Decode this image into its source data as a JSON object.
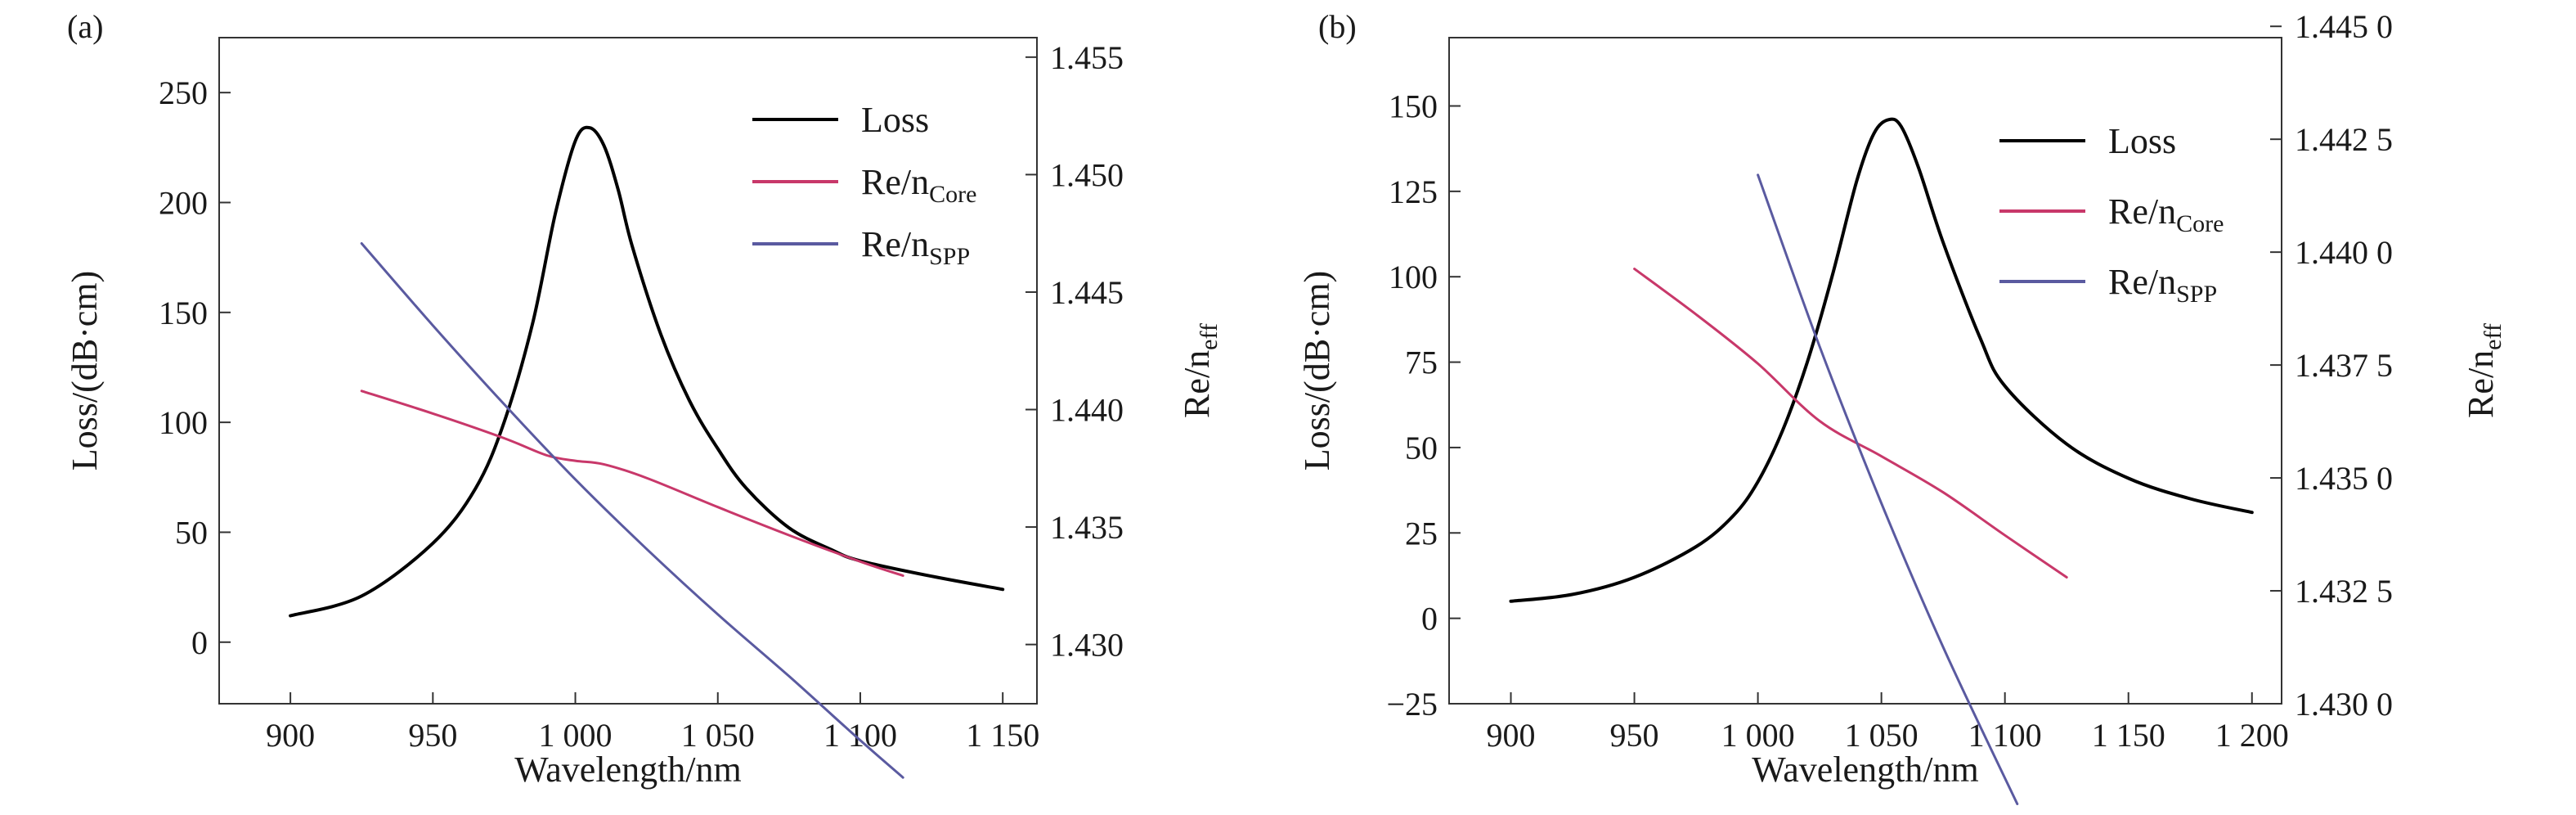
{
  "chart_data": [
    {
      "type": "line",
      "panel_label": "(a)",
      "xlabel": "Wavelength/nm",
      "ylabel": "Loss/(dB·cm)",
      "y2label": {
        "main": "Re/n",
        "sub": "eff"
      },
      "xlim": [
        875,
        1162
      ],
      "ylim": [
        -28,
        275
      ],
      "y2lim": [
        1.42748,
        1.45583
      ],
      "x_ticks": [
        {
          "value": 900,
          "label": "900"
        },
        {
          "value": 950,
          "label": "950"
        },
        {
          "value": 1000,
          "label": "1 000"
        },
        {
          "value": 1050,
          "label": "1 050"
        },
        {
          "value": 1100,
          "label": "1 100"
        },
        {
          "value": 1150,
          "label": "1 150"
        }
      ],
      "y_ticks": [
        {
          "value": 0,
          "label": "0"
        },
        {
          "value": 50,
          "label": "50"
        },
        {
          "value": 100,
          "label": "100"
        },
        {
          "value": 150,
          "label": "150"
        },
        {
          "value": 200,
          "label": "200"
        },
        {
          "value": 250,
          "label": "250"
        }
      ],
      "y2_ticks": [
        {
          "value": 1.43,
          "label": "1.430"
        },
        {
          "value": 1.435,
          "label": "1.435"
        },
        {
          "value": 1.44,
          "label": "1.440"
        },
        {
          "value": 1.445,
          "label": "1.445"
        },
        {
          "value": 1.45,
          "label": "1.450"
        },
        {
          "value": 1.455,
          "label": "1.455"
        }
      ],
      "legend_position": "top-right",
      "series": [
        {
          "name": "Loss",
          "label_main": "Loss",
          "label_sub": "",
          "axis": "left",
          "color": "#000000",
          "x": [
            900,
            925,
            950,
            965,
            975,
            985,
            993,
            1000,
            1005,
            1010,
            1015,
            1020,
            1030,
            1040,
            1050,
            1060,
            1075,
            1090,
            1100,
            1125,
            1150
          ],
          "y": [
            12,
            21,
            45,
            70,
            100,
            145,
            195,
            228,
            234,
            226,
            206,
            180,
            140,
            110,
            88,
            70,
            52,
            42,
            37,
            30,
            24
          ]
        },
        {
          "name": "Re/nCore",
          "label_main": "Re/n",
          "label_sub": "Core",
          "axis": "right",
          "color": "#c8386a",
          "x": [
            925,
            950,
            975,
            990,
            1000,
            1010,
            1025,
            1050,
            1075,
            1100,
            1115
          ],
          "y": [
            1.44079,
            1.43983,
            1.43878,
            1.43805,
            1.43782,
            1.43767,
            1.43709,
            1.43585,
            1.43465,
            1.43353,
            1.43293
          ]
        },
        {
          "name": "Re/nSPP",
          "label_main": "Re/n",
          "label_sub": "SPP",
          "axis": "right",
          "color": "#5a5aa0",
          "x": [
            925,
            950,
            975,
            1000,
            1025,
            1050,
            1075,
            1100,
            1115
          ],
          "y": [
            1.44707,
            1.44358,
            1.44023,
            1.43703,
            1.43407,
            1.43128,
            1.42865,
            1.42592,
            1.42434
          ]
        }
      ]
    },
    {
      "type": "line",
      "panel_label": "(b)",
      "xlabel": "Wavelength/nm",
      "ylabel": "Loss/(dB·cm)",
      "y2label": {
        "main": "Re/n",
        "sub": "eff"
      },
      "xlim": [
        875,
        1212
      ],
      "ylim": [
        -25,
        170
      ],
      "y2lim": [
        1.43,
        1.44475
      ],
      "x_ticks": [
        {
          "value": 900,
          "label": "900"
        },
        {
          "value": 950,
          "label": "950"
        },
        {
          "value": 1000,
          "label": "1 000"
        },
        {
          "value": 1050,
          "label": "1 050"
        },
        {
          "value": 1100,
          "label": "1 100"
        },
        {
          "value": 1150,
          "label": "1 150"
        },
        {
          "value": 1200,
          "label": "1 200"
        }
      ],
      "y_ticks": [
        {
          "value": -25,
          "label": "−25"
        },
        {
          "value": 0,
          "label": "0"
        },
        {
          "value": 25,
          "label": "25"
        },
        {
          "value": 50,
          "label": "50"
        },
        {
          "value": 75,
          "label": "75"
        },
        {
          "value": 100,
          "label": "100"
        },
        {
          "value": 125,
          "label": "125"
        },
        {
          "value": 150,
          "label": "150"
        }
      ],
      "y2_ticks": [
        {
          "value": 1.43,
          "label": "1.430 0"
        },
        {
          "value": 1.4325,
          "label": "1.432 5"
        },
        {
          "value": 1.435,
          "label": "1.435 0"
        },
        {
          "value": 1.4375,
          "label": "1.437 5"
        },
        {
          "value": 1.44,
          "label": "1.440 0"
        },
        {
          "value": 1.4425,
          "label": "1.442 5"
        },
        {
          "value": 1.445,
          "label": "1.445 0"
        }
      ],
      "legend_position": "top-right",
      "series": [
        {
          "name": "Loss",
          "label_main": "Loss",
          "label_sub": "",
          "axis": "left",
          "color": "#000000",
          "x": [
            900,
            925,
            950,
            975,
            990,
            1000,
            1010,
            1020,
            1030,
            1040,
            1047,
            1053,
            1058,
            1065,
            1075,
            1090,
            1100,
            1125,
            1150,
            1175,
            1200
          ],
          "y": [
            5,
            7,
            12,
            21,
            30,
            40,
            55,
            75,
            100,
            128,
            142,
            146,
            144,
            132,
            110,
            82,
            68,
            51,
            41,
            35,
            31
          ]
        },
        {
          "name": "Re/nCore",
          "label_main": "Re/n",
          "label_sub": "Core",
          "axis": "right",
          "color": "#c8386a",
          "x": [
            950,
            975,
            1000,
            1025,
            1050,
            1075,
            1100,
            1125
          ],
          "y": [
            1.43963,
            1.43862,
            1.43753,
            1.43626,
            1.43548,
            1.43468,
            1.43373,
            1.4328
          ]
        },
        {
          "name": "Re/nSPP",
          "label_main": "Re/n",
          "label_sub": "SPP",
          "axis": "right",
          "color": "#5a5aa0",
          "x": [
            1000,
            1025,
            1050,
            1075,
            1105
          ],
          "y": [
            1.44171,
            1.43791,
            1.43444,
            1.43125,
            1.42778
          ]
        }
      ]
    }
  ]
}
